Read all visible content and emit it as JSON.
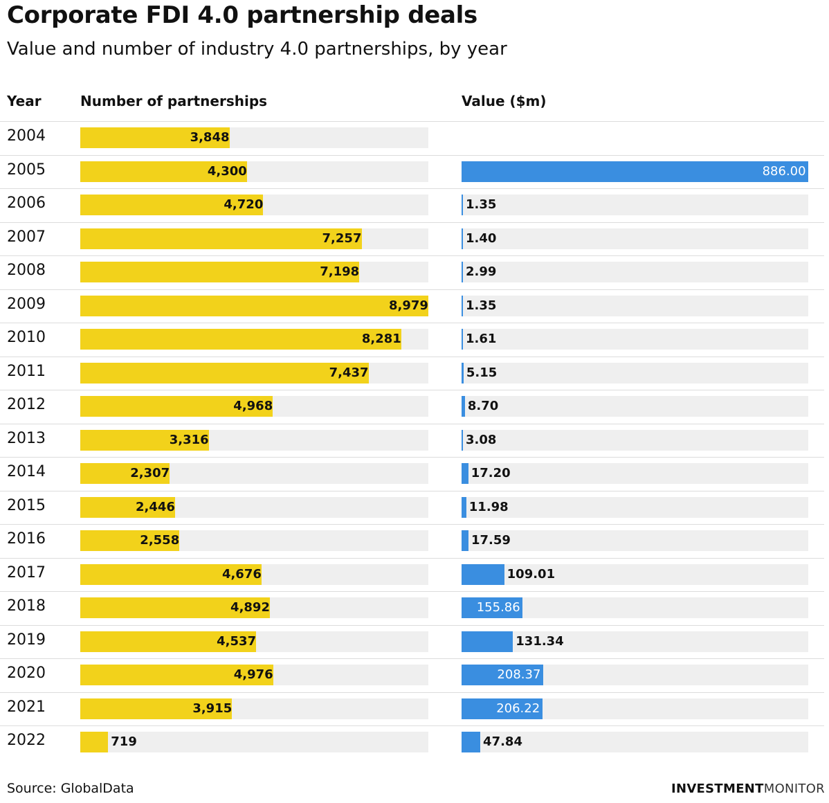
{
  "title": "Corporate FDI 4.0 partnership deals",
  "subtitle": "Value and number of industry 4.0 partnerships, by year",
  "headers": {
    "year": "Year",
    "count": "Number of partnerships",
    "value": "Value ($m)"
  },
  "source": "Source: GlobalData",
  "brand": {
    "part1": "INVESTMENT",
    "part2": "MONITOR"
  },
  "colors": {
    "count_bar": "#f2d21b",
    "value_bar": "#3a8ee0",
    "track": "#efefef"
  },
  "chart_data": {
    "type": "bar",
    "categories": [
      "2004",
      "2005",
      "2006",
      "2007",
      "2008",
      "2009",
      "2010",
      "2011",
      "2012",
      "2013",
      "2014",
      "2015",
      "2016",
      "2017",
      "2018",
      "2019",
      "2020",
      "2021",
      "2022"
    ],
    "series": [
      {
        "name": "Number of partnerships",
        "values": [
          3848,
          4300,
          4720,
          7257,
          7198,
          8979,
          8281,
          7437,
          4968,
          3316,
          2307,
          2446,
          2558,
          4676,
          4892,
          4537,
          4976,
          3915,
          719
        ],
        "labels": [
          "3,848",
          "4,300",
          "4,720",
          "7,257",
          "7,198",
          "8,979",
          "8,281",
          "7,437",
          "4,968",
          "3,316",
          "2,307",
          "2,446",
          "2,558",
          "4,676",
          "4,892",
          "4,537",
          "4,976",
          "3,915",
          "719"
        ]
      },
      {
        "name": "Value ($m)",
        "values": [
          null,
          886.0,
          1.35,
          1.4,
          2.99,
          1.35,
          1.61,
          5.15,
          8.7,
          3.08,
          17.2,
          11.98,
          17.59,
          109.01,
          155.86,
          131.34,
          208.37,
          206.22,
          47.84
        ],
        "labels": [
          "",
          "886.00",
          "1.35",
          "1.40",
          "2.99",
          "1.35",
          "1.61",
          "5.15",
          "8.70",
          "3.08",
          "17.20",
          "11.98",
          "17.59",
          "109.01",
          "155.86",
          "131.34",
          "208.37",
          "206.22",
          "47.84"
        ]
      }
    ]
  }
}
